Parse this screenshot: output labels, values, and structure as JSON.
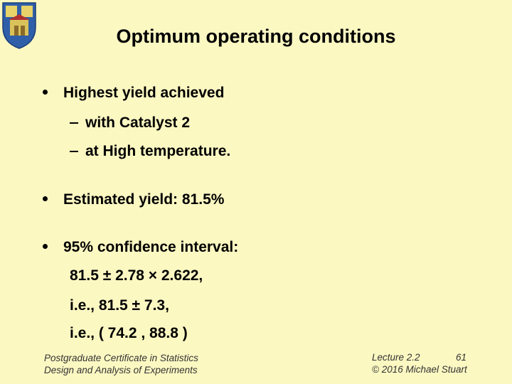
{
  "header": {
    "title": "Optimum operating conditions"
  },
  "bullets": [
    {
      "text": "Highest yield achieved",
      "subitems": [
        "with Catalyst 2",
        "at High temperature."
      ]
    },
    {
      "text": "Estimated yield: 81.5%"
    },
    {
      "text": "95% confidence interval:",
      "lines": [
        "81.5 ± 2.78 × 2.622,",
        "i.e., 81.5 ± 7.3,",
        "i.e., ( 74.2 , 88.8 )"
      ]
    }
  ],
  "footer": {
    "left": [
      "Postgraduate Certificate in Statistics",
      "Design and Analysis of Experiments"
    ],
    "lecture": "Lecture 2.2",
    "page": "61",
    "copyright": "© 2016 Michael Stuart"
  }
}
